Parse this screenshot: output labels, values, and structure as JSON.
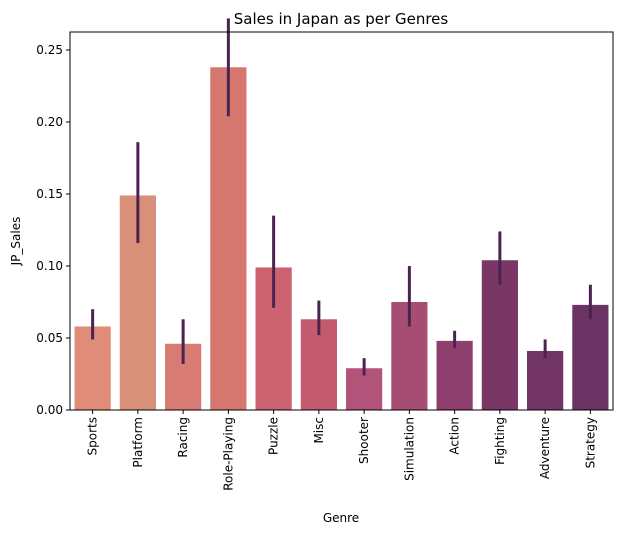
{
  "chart_data": {
    "type": "bar",
    "title": "Sales in Japan as per Genres",
    "xlabel": "Genre",
    "ylabel": "JP_Sales",
    "ylim": [
      0,
      0.2625
    ],
    "yticks": [
      "0.00",
      "0.05",
      "0.10",
      "0.15",
      "0.20",
      "0.25"
    ],
    "categories": [
      "Sports",
      "Platform",
      "Racing",
      "Role-Playing",
      "Puzzle",
      "Misc",
      "Shooter",
      "Simulation",
      "Action",
      "Fighting",
      "Adventure",
      "Strategy"
    ],
    "values": [
      0.058,
      0.149,
      0.046,
      0.238,
      0.099,
      0.063,
      0.029,
      0.075,
      0.048,
      0.104,
      0.041,
      0.073
    ],
    "error_low": [
      0.049,
      0.116,
      0.032,
      0.204,
      0.071,
      0.052,
      0.024,
      0.058,
      0.043,
      0.087,
      0.036,
      0.063
    ],
    "error_high": [
      0.07,
      0.186,
      0.063,
      0.272,
      0.135,
      0.076,
      0.036,
      0.1,
      0.055,
      0.124,
      0.049,
      0.087
    ],
    "colors": [
      "#df8d79",
      "#d99079",
      "#d87c73",
      "#d5776e",
      "#cd6370",
      "#c45a6e",
      "#b2547a",
      "#a54d72",
      "#8e3f6e",
      "#7a3766",
      "#723565",
      "#6b3364"
    ],
    "error_color": "#4a2350",
    "grid": false
  }
}
